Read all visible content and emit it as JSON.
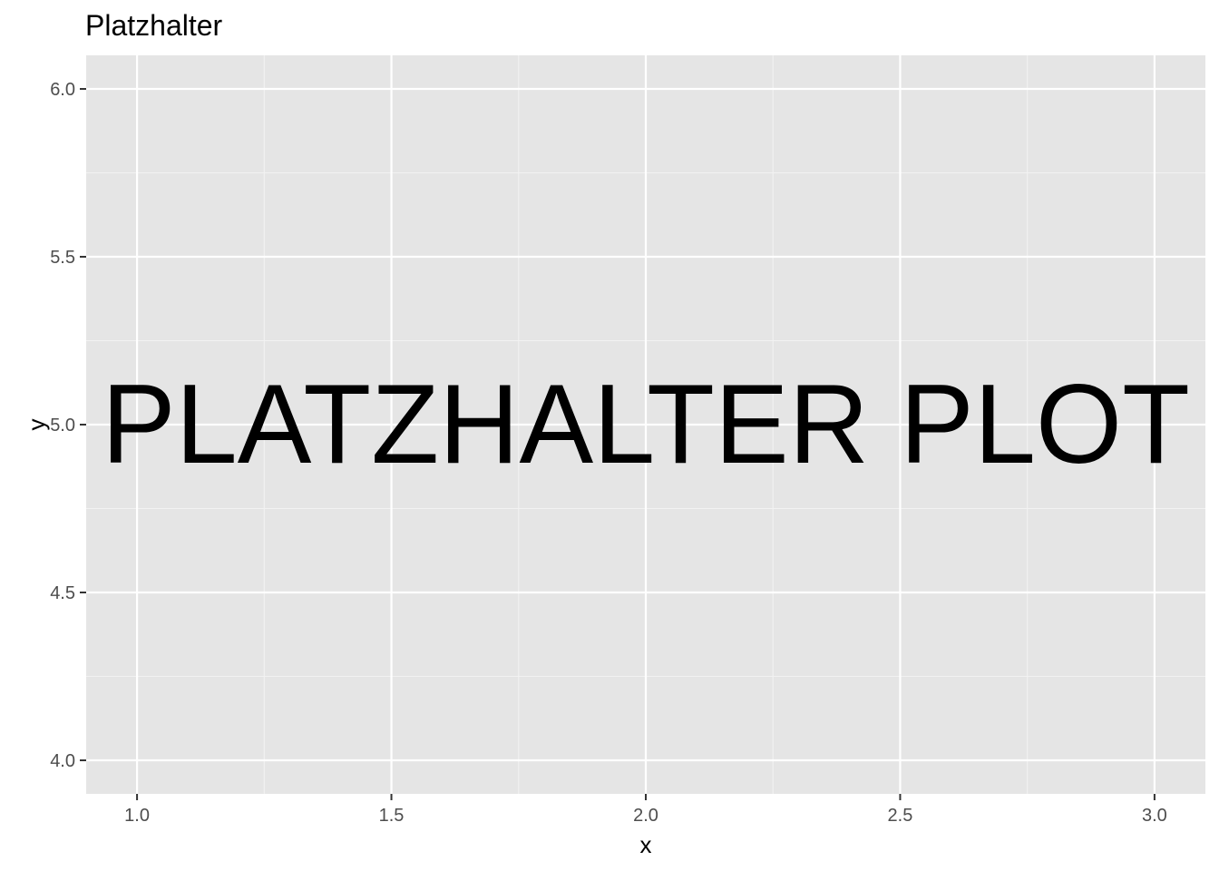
{
  "chart_data": {
    "type": "scatter",
    "title": "Platzhalter",
    "xlabel": "x",
    "ylabel": "y",
    "xlim": [
      0.9,
      3.1
    ],
    "ylim": [
      3.9,
      6.1
    ],
    "x_ticks": [
      1.0,
      1.5,
      2.0,
      2.5,
      3.0
    ],
    "x_tick_labels": [
      "1.0",
      "1.5",
      "2.0",
      "2.5",
      "3.0"
    ],
    "x_minor_ticks": [
      1.25,
      1.75,
      2.25,
      2.75
    ],
    "y_ticks": [
      4.0,
      4.5,
      5.0,
      5.5,
      6.0
    ],
    "y_tick_labels": [
      "4.0",
      "4.5",
      "5.0",
      "5.5",
      "6.0"
    ],
    "y_minor_ticks": [
      4.25,
      4.75,
      5.25,
      5.75
    ],
    "grid": true,
    "annotation": {
      "text": "PLATZHALTER PLOT",
      "x": 2.0,
      "y": 5.0
    },
    "series": []
  },
  "colors": {
    "panel_background": "#e5e5e5",
    "grid_major": "#ffffff",
    "grid_minor": "#f2f2f2",
    "tick_mark": "#333333",
    "tick_label": "#4d4d4d",
    "text": "#000000"
  }
}
